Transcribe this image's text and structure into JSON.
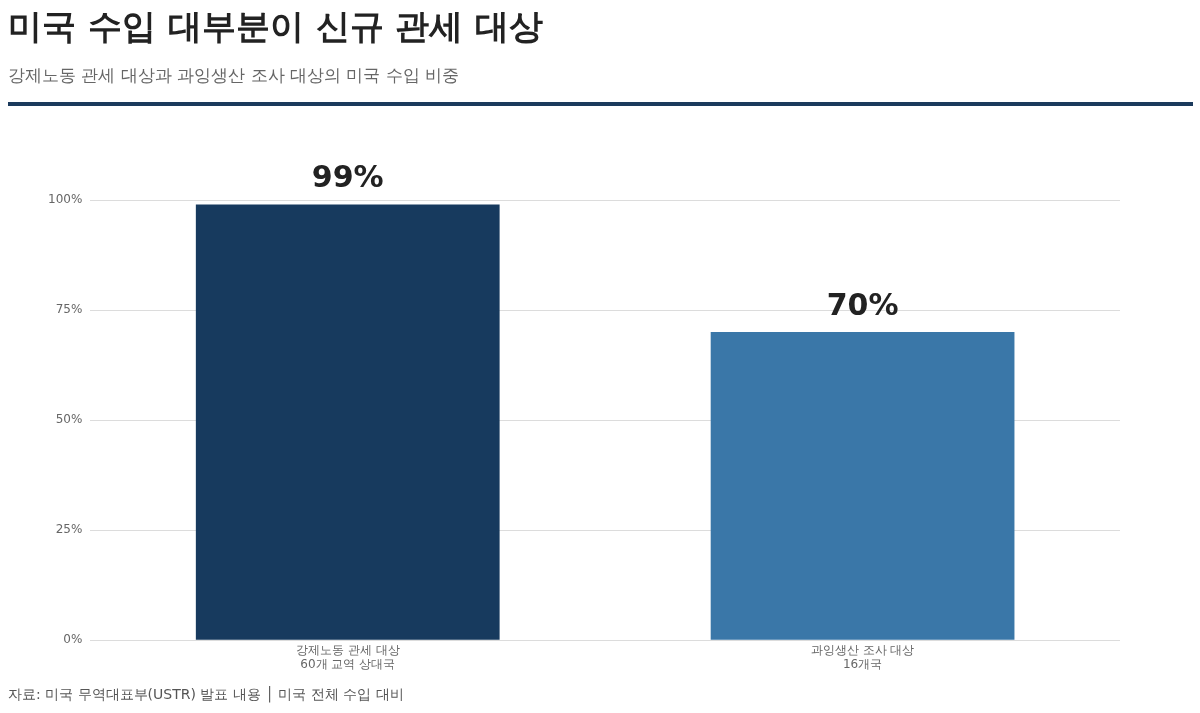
{
  "chart_data": {
    "type": "bar",
    "title": "미국 수입 대부분이 신규 관세 대상",
    "subtitle": "강제노동 관세 대상과 과잉생산 조사 대상의 미국 수입 비중",
    "categories": [
      "강제노동 관세 대상\n60개 교역 상대국",
      "과잉생산 조사 대상\n16개국"
    ],
    "values": [
      99,
      70
    ],
    "colors": [
      "#173a5e",
      "#3a77a8"
    ],
    "value_labels": [
      "99%",
      "70%"
    ],
    "ylim": [
      0,
      100
    ],
    "yticks": [
      {
        "value": 0,
        "label": "0%"
      },
      {
        "value": 25,
        "label": "25%"
      },
      {
        "value": 50,
        "label": "50%"
      },
      {
        "value": 75,
        "label": "75%"
      },
      {
        "value": 100,
        "label": "100%"
      }
    ],
    "grid": "y",
    "legend": false,
    "annotations": [
      "자료: 미국 무역대표부(USTR) 발표 내용 │ 미국 전체 수입 대비"
    ]
  }
}
